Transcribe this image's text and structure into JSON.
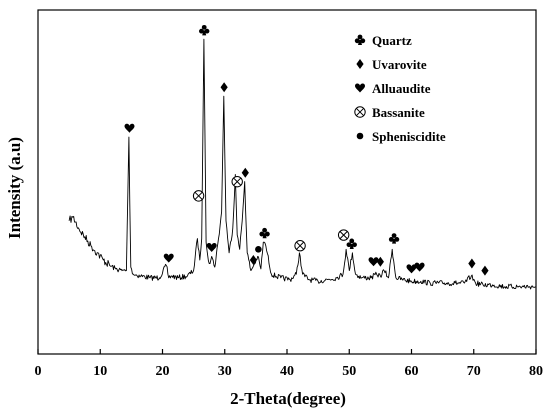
{
  "chart_data": {
    "type": "line",
    "title": "",
    "xlabel": "2-Theta(degree)",
    "ylabel": "Intensity (a.u)",
    "xlim": [
      0,
      80
    ],
    "xticks": [
      0,
      10,
      20,
      30,
      40,
      50,
      60,
      70,
      80
    ],
    "yticks": [],
    "grid": false,
    "legend_position": "top-right",
    "legend": [
      {
        "symbol": "club",
        "label": "Quartz"
      },
      {
        "symbol": "diamond",
        "label": "Uvarovite"
      },
      {
        "symbol": "heart",
        "label": "Alluaudite"
      },
      {
        "symbol": "otimes",
        "label": "Bassanite"
      },
      {
        "symbol": "dot",
        "label": "Spheniscidite"
      }
    ],
    "series": [
      {
        "color": "#000000",
        "x": [
          5.0,
          5.6,
          6.5,
          7.5,
          8.5,
          9.5,
          10.5,
          11.5,
          12.5,
          13.5,
          14.2,
          14.6,
          14.9,
          15.3,
          16.5,
          18.0,
          19.5,
          20.6,
          21.0,
          21.4,
          22.5,
          24.0,
          25.0,
          25.6,
          26.0,
          26.3,
          26.65,
          27.0,
          27.5,
          27.9,
          28.4,
          29.0,
          29.5,
          29.85,
          30.2,
          30.7,
          31.3,
          31.7,
          32.0,
          32.4,
          32.8,
          33.2,
          33.6,
          34.2,
          34.8,
          35.3,
          35.8,
          36.2,
          36.6,
          37.5,
          39.0,
          40.5,
          41.5,
          42.0,
          42.5,
          43.5,
          45.0,
          46.5,
          48.0,
          49.0,
          49.5,
          50.0,
          50.5,
          51.0,
          52.0,
          53.5,
          54.4,
          55.0,
          55.6,
          56.3,
          56.9,
          57.5,
          58.5,
          60.0,
          61.5,
          63.0,
          65.0,
          67.0,
          68.5,
          69.6,
          70.3,
          71.5,
          73.0,
          75.0,
          77.0,
          79.0,
          80.0
        ],
        "y": [
          0.4,
          0.42,
          0.36,
          0.31,
          0.26,
          0.22,
          0.18,
          0.15,
          0.13,
          0.12,
          0.12,
          0.87,
          0.14,
          0.1,
          0.09,
          0.08,
          0.08,
          0.15,
          0.08,
          0.09,
          0.08,
          0.09,
          0.12,
          0.3,
          0.18,
          0.3,
          1.42,
          0.28,
          0.16,
          0.2,
          0.14,
          0.3,
          0.45,
          1.1,
          0.4,
          0.22,
          0.36,
          0.66,
          0.32,
          0.24,
          0.4,
          0.62,
          0.22,
          0.12,
          0.16,
          0.2,
          0.13,
          0.28,
          0.26,
          0.1,
          0.08,
          0.07,
          0.1,
          0.22,
          0.1,
          0.07,
          0.06,
          0.07,
          0.08,
          0.1,
          0.24,
          0.12,
          0.22,
          0.1,
          0.08,
          0.08,
          0.1,
          0.09,
          0.12,
          0.08,
          0.24,
          0.08,
          0.07,
          0.06,
          0.06,
          0.05,
          0.05,
          0.05,
          0.05,
          0.09,
          0.05,
          0.04,
          0.04,
          0.03,
          0.03,
          0.03,
          0.03
        ]
      }
    ],
    "annotations": [
      {
        "symbol": "club",
        "x": 26.7,
        "y": 1.47
      },
      {
        "symbol": "diamond",
        "x": 29.9,
        "y": 1.15
      },
      {
        "symbol": "heart",
        "x": 14.7,
        "y": 0.92
      },
      {
        "symbol": "otimes",
        "x": 25.8,
        "y": 0.54
      },
      {
        "symbol": "otimes",
        "x": 32.0,
        "y": 0.62
      },
      {
        "symbol": "diamond",
        "x": 33.3,
        "y": 0.67
      },
      {
        "symbol": "club",
        "x": 36.4,
        "y": 0.33
      },
      {
        "symbol": "heart",
        "x": 27.9,
        "y": 0.25
      },
      {
        "symbol": "heart",
        "x": 21.0,
        "y": 0.19
      },
      {
        "symbol": "dot",
        "x": 35.4,
        "y": 0.24
      },
      {
        "symbol": "diamond",
        "x": 34.6,
        "y": 0.18
      },
      {
        "symbol": "otimes",
        "x": 42.1,
        "y": 0.26
      },
      {
        "symbol": "otimes",
        "x": 49.1,
        "y": 0.32
      },
      {
        "symbol": "club",
        "x": 50.4,
        "y": 0.27
      },
      {
        "symbol": "heart",
        "x": 53.9,
        "y": 0.17
      },
      {
        "symbol": "diamond",
        "x": 55.0,
        "y": 0.17
      },
      {
        "symbol": "club",
        "x": 57.2,
        "y": 0.3
      },
      {
        "symbol": "heart",
        "x": 60.0,
        "y": 0.13
      },
      {
        "symbol": "heart",
        "x": 61.3,
        "y": 0.14
      },
      {
        "symbol": "diamond",
        "x": 69.7,
        "y": 0.16
      },
      {
        "symbol": "diamond",
        "x": 71.8,
        "y": 0.12
      }
    ]
  }
}
